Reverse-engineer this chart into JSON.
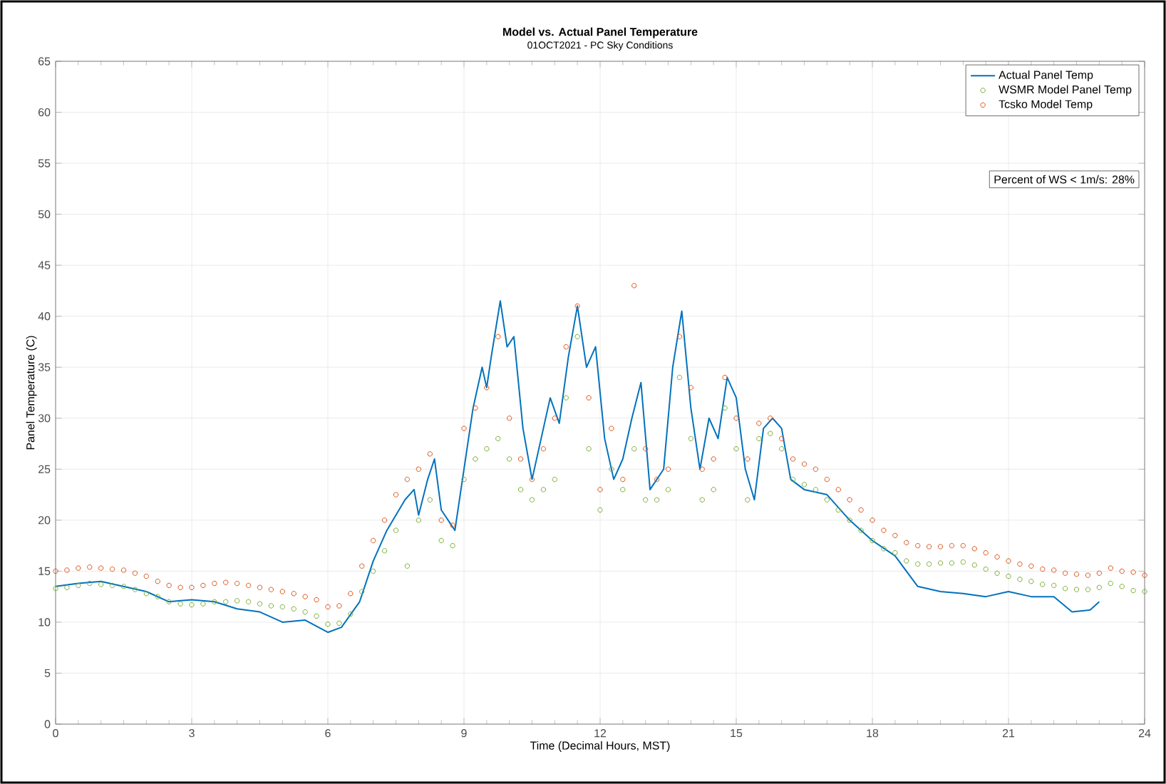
{
  "chart_data": {
    "type": "line",
    "title": "Model vs. Actual Panel Temperature",
    "subtitle": "01OCT2021 - PC Sky Conditions",
    "xlabel": "Time (Decimal Hours, MST)",
    "ylabel": "Panel Temperature (C)",
    "xlim": [
      0,
      24
    ],
    "xticks": [
      0,
      3,
      6,
      9,
      12,
      15,
      18,
      21,
      24
    ],
    "ylim": [
      0,
      65
    ],
    "yticks": [
      0,
      5,
      10,
      15,
      20,
      25,
      30,
      35,
      40,
      45,
      50,
      55,
      60,
      65
    ],
    "grid": true,
    "legend": "top right",
    "annotations": [
      "Percent of WS < 1m/s: 28%"
    ],
    "series": [
      {
        "name": "Actual Panel Temp",
        "color": "#0072bd",
        "x": [
          0,
          0.5,
          1,
          1.5,
          2,
          2.5,
          3,
          3.5,
          4,
          4.5,
          5,
          5.5,
          6,
          6.3,
          6.7,
          7,
          7.3,
          7.7,
          7.9,
          8.0,
          8.2,
          8.35,
          8.5,
          8.8,
          9,
          9.2,
          9.4,
          9.5,
          9.6,
          9.8,
          9.95,
          10.1,
          10.3,
          10.5,
          10.7,
          10.9,
          11.1,
          11.3,
          11.5,
          11.7,
          11.9,
          12.1,
          12.3,
          12.5,
          12.7,
          12.9,
          13.1,
          13.4,
          13.6,
          13.8,
          14.0,
          14.2,
          14.4,
          14.6,
          14.8,
          15.0,
          15.2,
          15.4,
          15.6,
          15.8,
          16,
          16.2,
          16.5,
          17,
          17.5,
          18,
          18.5,
          19,
          19.5,
          20,
          20.5,
          21,
          21.5,
          22,
          22.4,
          22.8,
          23
        ],
        "values": [
          13.5,
          13.8,
          14,
          13.5,
          13,
          12,
          12.2,
          12,
          11.3,
          11,
          10,
          10.2,
          9,
          9.5,
          12,
          16,
          19,
          22,
          23,
          20.5,
          24,
          26,
          21,
          19,
          25,
          31,
          35,
          33,
          36,
          41.5,
          37,
          38,
          29,
          24,
          28,
          32,
          29.5,
          36,
          41,
          35,
          37,
          28,
          24,
          26,
          30,
          33.5,
          23,
          25,
          35,
          40.5,
          31,
          25,
          30,
          28,
          34,
          32,
          25,
          22,
          29,
          30,
          29,
          24,
          23,
          22.5,
          20,
          18,
          16.5,
          13.5,
          13,
          12.8,
          12.5,
          13,
          12.5,
          12.5,
          11,
          11.2,
          12
        ]
      },
      {
        "name": "WSMR Model Panel Temp",
        "type": "scatter",
        "marker": "circle",
        "color": "#77ac30",
        "x": [
          0,
          0.25,
          0.5,
          0.75,
          1,
          1.25,
          1.5,
          1.75,
          2,
          2.25,
          2.5,
          2.75,
          3,
          3.25,
          3.5,
          3.75,
          4,
          4.25,
          4.5,
          4.75,
          5,
          5.25,
          5.5,
          5.75,
          6,
          6.25,
          6.5,
          6.75,
          7,
          7.25,
          7.5,
          7.75,
          8,
          8.25,
          8.5,
          8.75,
          9,
          9.25,
          9.5,
          9.75,
          10,
          10.25,
          10.5,
          10.75,
          11,
          11.25,
          11.5,
          11.75,
          12,
          12.25,
          12.5,
          12.75,
          13,
          13.25,
          13.5,
          13.75,
          14,
          14.25,
          14.5,
          14.75,
          15,
          15.25,
          15.5,
          15.75,
          16,
          16.25,
          16.5,
          16.75,
          17,
          17.25,
          17.5,
          17.75,
          18,
          18.25,
          18.5,
          18.75,
          19,
          19.25,
          19.5,
          19.75,
          20,
          20.25,
          20.5,
          20.75,
          21,
          21.25,
          21.5,
          21.75,
          22,
          22.25,
          22.5,
          22.75,
          23,
          23.25,
          23.5,
          23.75,
          24
        ],
        "values": [
          13.3,
          13.4,
          13.6,
          13.8,
          13.7,
          13.6,
          13.5,
          13.2,
          12.8,
          12.5,
          12,
          11.8,
          11.7,
          11.8,
          12,
          12,
          12.1,
          12,
          11.8,
          11.6,
          11.5,
          11.3,
          11.0,
          10.6,
          9.8,
          9.9,
          10.8,
          13,
          15,
          17,
          19,
          15.5,
          20,
          22,
          18,
          17.5,
          24,
          26,
          27,
          28,
          26,
          23,
          22,
          23,
          24,
          32,
          38,
          27,
          21,
          25,
          23,
          27,
          22,
          22,
          23,
          34,
          28,
          22,
          23,
          31,
          27,
          22,
          28,
          28.5,
          27,
          24,
          23.5,
          23,
          22,
          21,
          20,
          19,
          18,
          17.2,
          16.8,
          16,
          15.7,
          15.7,
          15.8,
          15.8,
          15.9,
          15.6,
          15.2,
          14.8,
          14.5,
          14.2,
          14,
          13.7,
          13.6,
          13.3,
          13.2,
          13.2,
          13.4,
          13.8,
          13.5,
          13.1,
          13.0
        ]
      },
      {
        "name": "Tcsko Model Temp",
        "type": "scatter",
        "marker": "circle",
        "color": "#d95319",
        "x": [
          0,
          0.25,
          0.5,
          0.75,
          1,
          1.25,
          1.5,
          1.75,
          2,
          2.25,
          2.5,
          2.75,
          3,
          3.25,
          3.5,
          3.75,
          4,
          4.25,
          4.5,
          4.75,
          5,
          5.25,
          5.5,
          5.75,
          6,
          6.25,
          6.5,
          6.75,
          7,
          7.25,
          7.5,
          7.75,
          8,
          8.25,
          8.5,
          8.75,
          9,
          9.25,
          9.5,
          9.75,
          10,
          10.25,
          10.5,
          10.75,
          11,
          11.25,
          11.5,
          11.75,
          12,
          12.25,
          12.5,
          12.75,
          13,
          13.25,
          13.5,
          13.75,
          14,
          14.25,
          14.5,
          14.75,
          15,
          15.25,
          15.5,
          15.75,
          16,
          16.25,
          16.5,
          16.75,
          17,
          17.25,
          17.5,
          17.75,
          18,
          18.25,
          18.5,
          18.75,
          19,
          19.25,
          19.5,
          19.75,
          20,
          20.25,
          20.5,
          20.75,
          21,
          21.25,
          21.5,
          21.75,
          22,
          22.25,
          22.5,
          22.75,
          23,
          23.25,
          23.5,
          23.75,
          24
        ],
        "values": [
          15,
          15.1,
          15.3,
          15.4,
          15.3,
          15.2,
          15.1,
          14.8,
          14.5,
          14,
          13.6,
          13.4,
          13.4,
          13.6,
          13.8,
          13.9,
          13.8,
          13.6,
          13.4,
          13.2,
          13,
          12.8,
          12.5,
          12.2,
          11.5,
          11.6,
          12.8,
          15.5,
          18,
          20,
          22.5,
          24,
          25,
          26.5,
          20,
          19.5,
          29,
          31,
          33,
          38,
          30,
          26,
          24,
          27,
          30,
          37,
          41,
          32,
          23,
          29,
          24,
          43,
          27,
          24,
          25,
          38,
          33,
          25,
          26,
          34,
          30,
          26,
          29.5,
          30,
          28,
          26,
          25.5,
          25,
          24,
          23,
          22,
          21,
          20,
          19,
          18.5,
          17.8,
          17.5,
          17.4,
          17.4,
          17.5,
          17.5,
          17.2,
          16.8,
          16.4,
          16,
          15.7,
          15.5,
          15.2,
          15.1,
          14.8,
          14.7,
          14.6,
          14.8,
          15.3,
          15,
          14.9,
          14.6
        ]
      }
    ]
  }
}
